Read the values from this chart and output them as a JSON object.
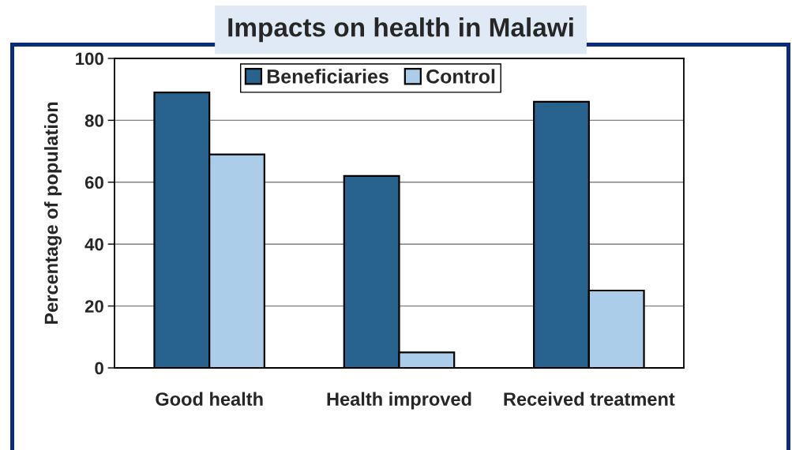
{
  "chart_data": {
    "type": "bar",
    "title": "Impacts on health in Malawi",
    "ylabel": "Percentage of population",
    "categories": [
      "Good health",
      "Health improved",
      "Received treatment"
    ],
    "series": [
      {
        "name": "Beneficiaries",
        "color": "#27638c",
        "values": [
          89,
          62,
          86
        ]
      },
      {
        "name": "Control",
        "color": "#abcdea",
        "values": [
          69,
          5,
          25
        ]
      }
    ],
    "ylim": [
      0,
      100
    ],
    "yticks": [
      0,
      20,
      40,
      60,
      80,
      100
    ],
    "grid": "y",
    "legend": "top"
  }
}
